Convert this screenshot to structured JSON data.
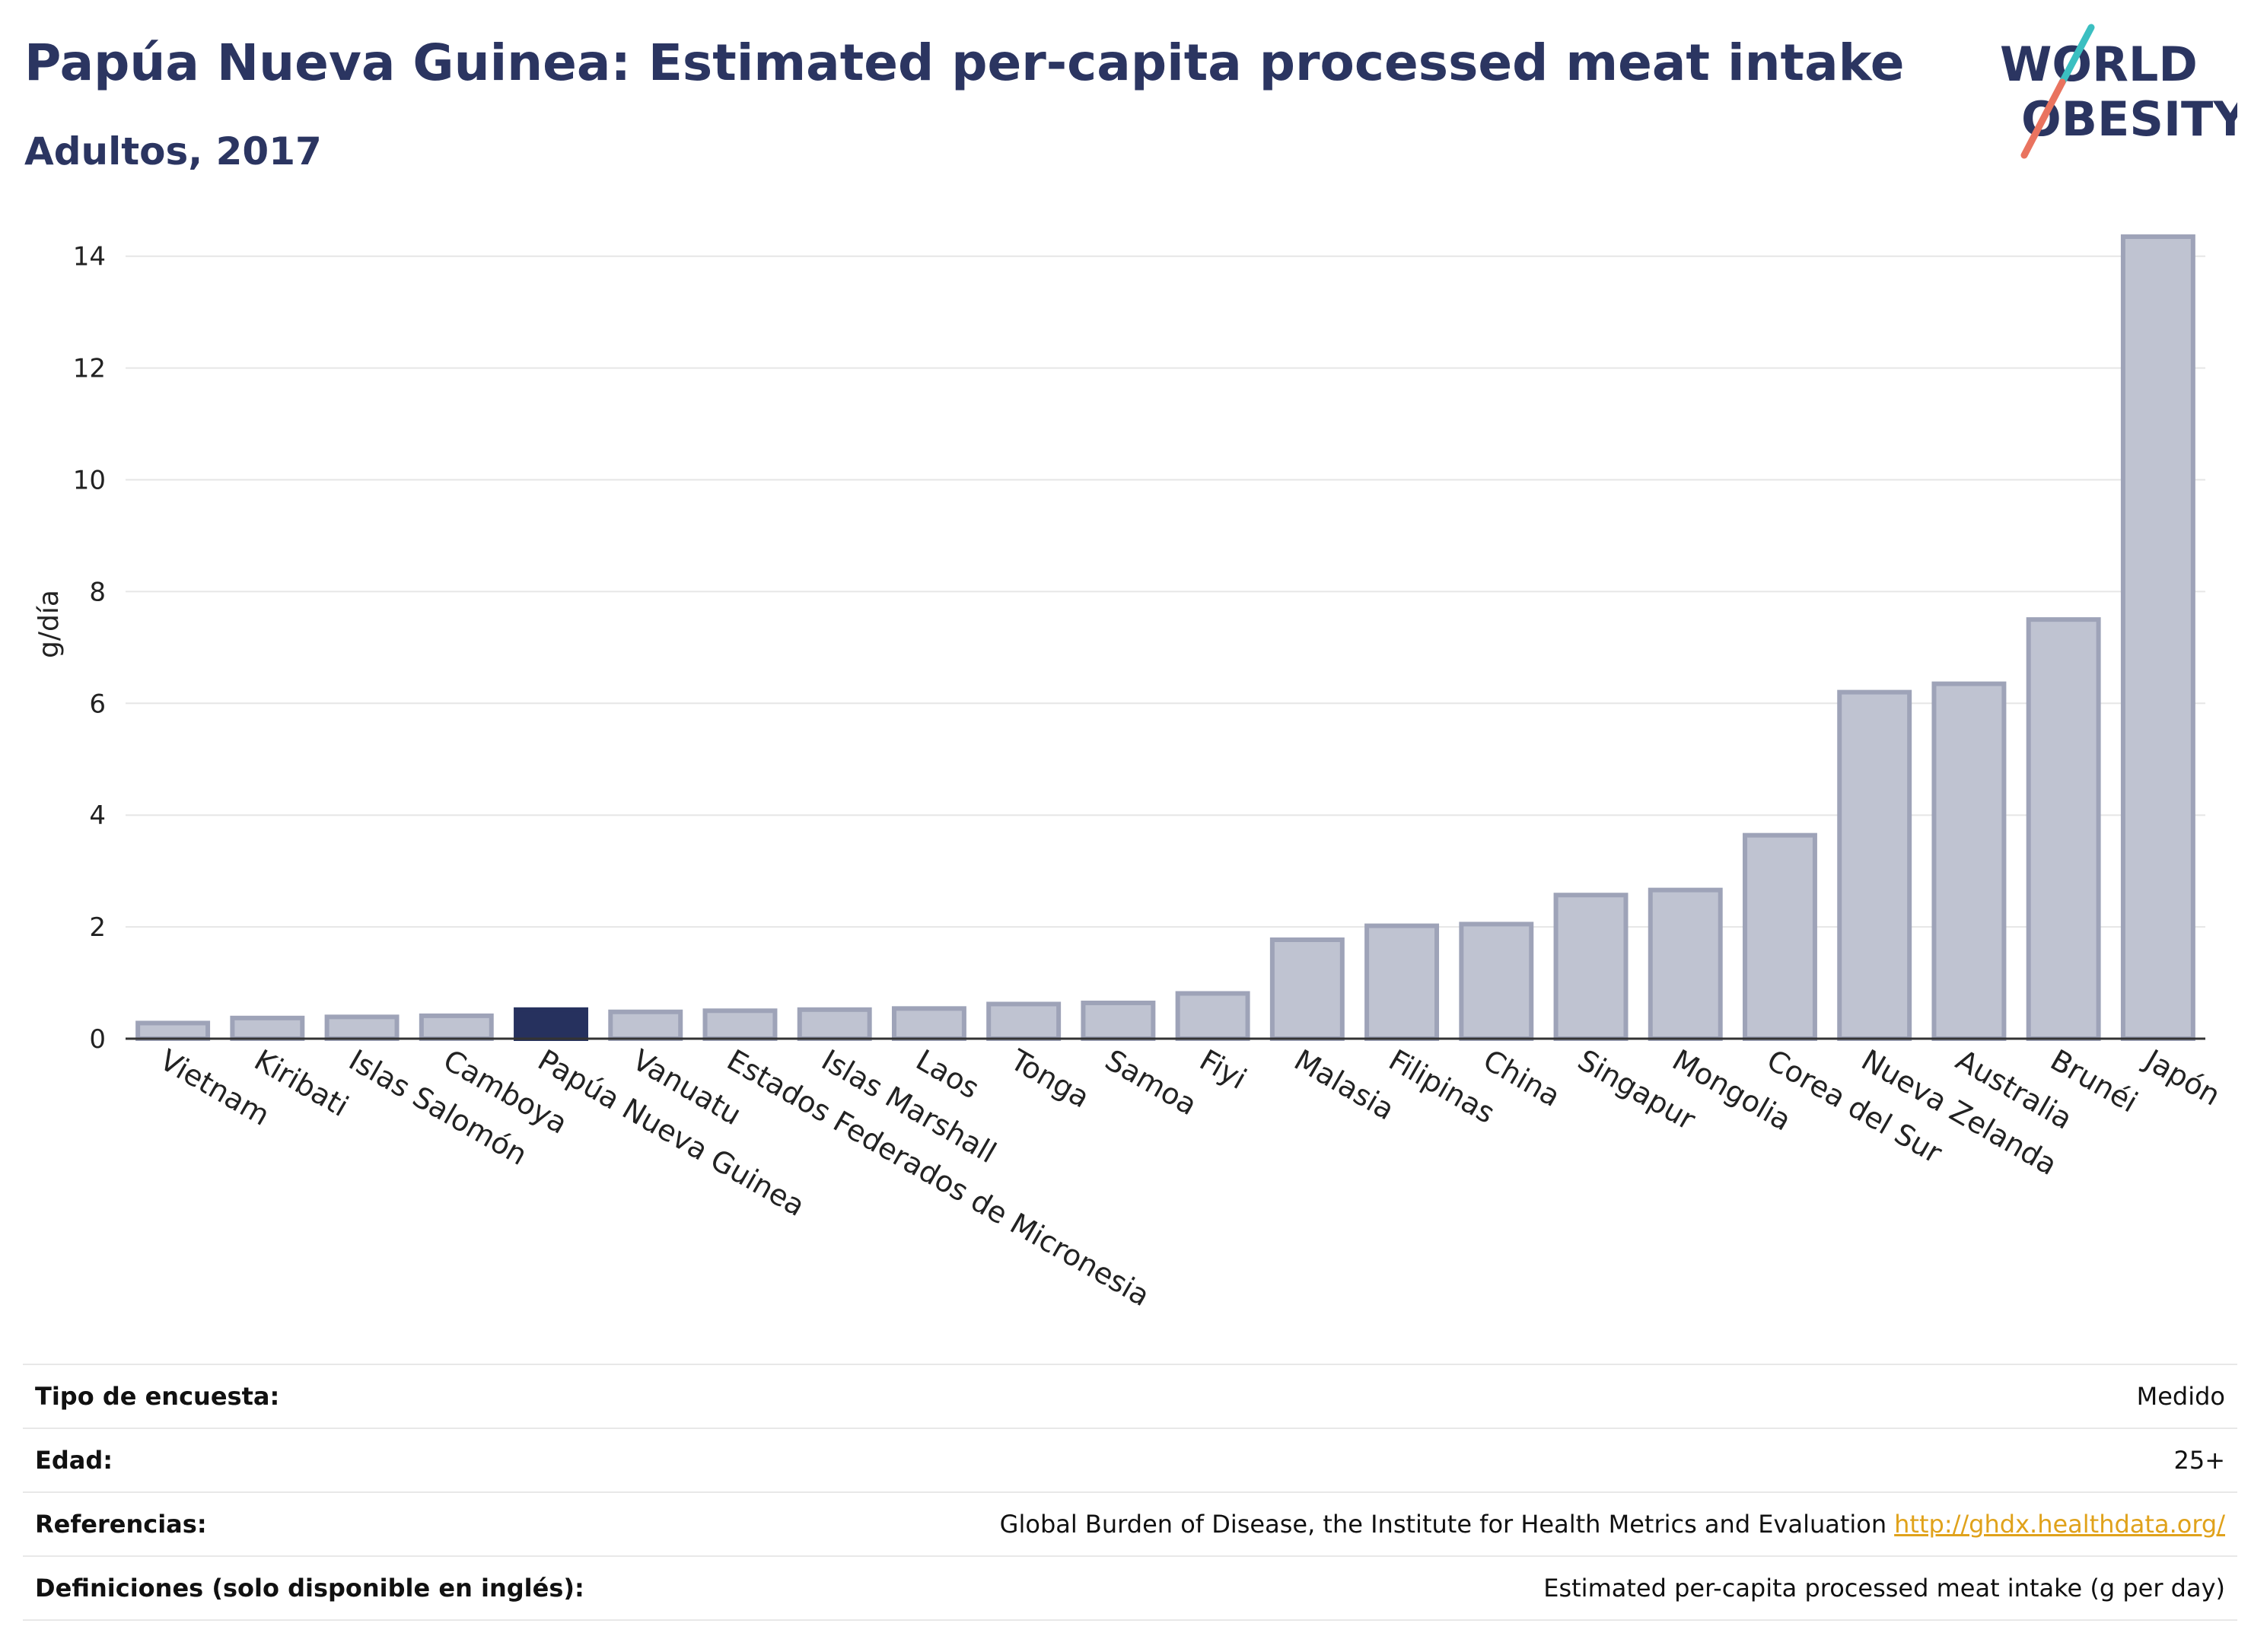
{
  "header": {
    "title": "Papúa Nueva Guinea: Estimated per-capita processed meat intake",
    "subtitle": "Adultos, 2017"
  },
  "logo": {
    "line1": "WORLD",
    "line2": "OBESITY",
    "accent_colors": [
      "#3bbfc1",
      "#e9735f"
    ]
  },
  "chart_data": {
    "type": "bar",
    "ylabel": "g/día",
    "ylim": [
      0,
      14.5
    ],
    "yticks": [
      0,
      2,
      4,
      6,
      8,
      10,
      12,
      14
    ],
    "grid": true,
    "highlight_category": "Papúa Nueva Guinea",
    "colors": {
      "bar": "#bfc3d1",
      "bar_border": "#9ea3b8",
      "highlight": "#26315e"
    },
    "categories": [
      "Vietnam",
      "Kiribati",
      "Islas Salomón",
      "Camboya",
      "Papúa Nueva Guinea",
      "Vanuatu",
      "Estados Federados de Micronesia",
      "Islas Marshall",
      "Laos",
      "Tonga",
      "Samoa",
      "Fiyi",
      "Malasia",
      "Filipinas",
      "China",
      "Singapur",
      "Mongolia",
      "Corea del Sur",
      "Nueva Zelanda",
      "Australia",
      "Brunéi",
      "Japón"
    ],
    "values": [
      0.28,
      0.37,
      0.39,
      0.41,
      0.52,
      0.48,
      0.5,
      0.52,
      0.54,
      0.62,
      0.64,
      0.81,
      1.77,
      2.02,
      2.05,
      2.57,
      2.66,
      3.64,
      6.2,
      6.35,
      7.5,
      14.35
    ]
  },
  "info": {
    "rows": [
      {
        "key": "Tipo de encuesta:",
        "value": "Medido"
      },
      {
        "key": "Edad:",
        "value": "25+"
      },
      {
        "key": "Referencias:",
        "value": "Global Burden of Disease, the Institute for Health Metrics and Evaluation",
        "link": "http://ghdx.healthdata.org/"
      },
      {
        "key": "Definiciones (solo disponible en inglés):",
        "value": "Estimated per-capita processed meat intake (g per day)"
      }
    ]
  }
}
